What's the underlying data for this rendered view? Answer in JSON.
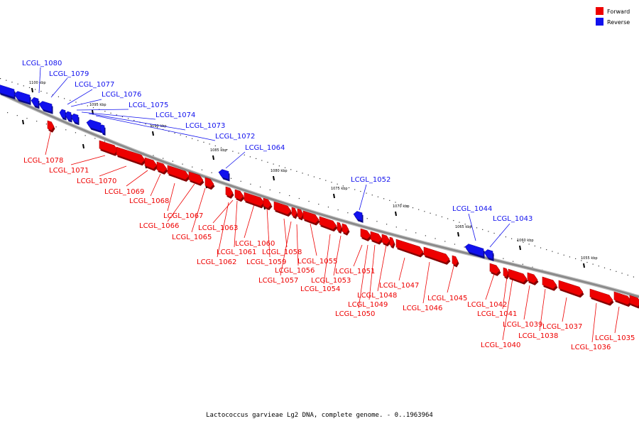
{
  "caption": "Lactococcus garvieae Lg2 DNA, complete genome. - 0..1963964",
  "colors": {
    "forward": "#ee0000",
    "reverse": "#1111ee",
    "backbone": "#888888"
  },
  "legend": [
    {
      "label": "Forward",
      "color": "#ee0000"
    },
    {
      "label": "Reverse",
      "color": "#1111ee"
    }
  ],
  "scale_labels": [
    "1100 kbp",
    "1095 kbp",
    "1090 kbp",
    "1085 kbp",
    "1080 kbp",
    "1075 kbp",
    "1070 kbp",
    "1065 kbp",
    "1060 kbp",
    "1055 kbp"
  ],
  "reverse_genes": [
    "LCGL_1080",
    "LCGL_1079",
    "LCGL_1077",
    "LCGL_1076",
    "LCGL_1075",
    "LCGL_1074",
    "LCGL_1073",
    "LCGL_1072",
    "LCGL_1064",
    "LCGL_1052",
    "LCGL_1044",
    "LCGL_1043"
  ],
  "forward_genes": [
    "LCGL_1078",
    "LCGL_1071",
    "LCGL_1070",
    "LCGL_1069",
    "LCGL_1068",
    "LCGL_1067",
    "LCGL_1066",
    "LCGL_1065",
    "LCGL_1063",
    "LCGL_1062",
    "LCGL_1061",
    "LCGL_1060",
    "LCGL_1059",
    "LCGL_1058",
    "LCGL_1057",
    "LCGL_1056",
    "LCGL_1055",
    "LCGL_1054",
    "LCGL_1053",
    "LCGL_1051",
    "LCGL_1050",
    "LCGL_1049",
    "LCGL_1048",
    "LCGL_1047",
    "LCGL_1046",
    "LCGL_1045",
    "LCGL_1042",
    "LCGL_1041",
    "LCGL_1040",
    "LCGL_1039",
    "LCGL_1038",
    "LCGL_1037",
    "LCGL_1036",
    "LCGL_1035"
  ]
}
